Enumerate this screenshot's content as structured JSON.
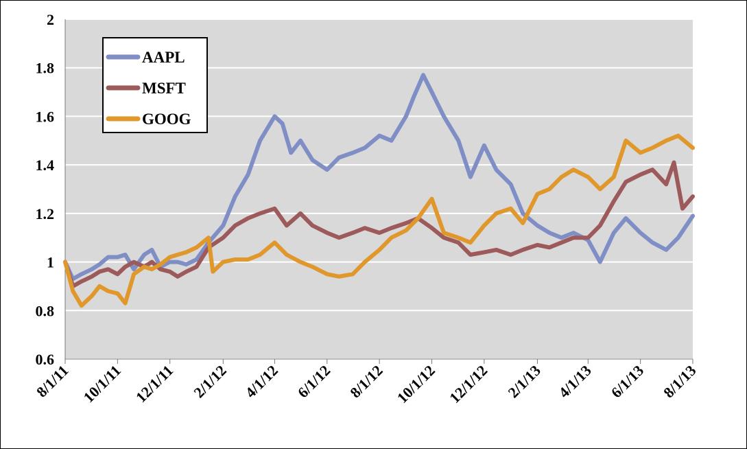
{
  "chart_data": {
    "type": "line",
    "title": "",
    "xlabel": "",
    "ylabel": "",
    "ylim": [
      0.6,
      2
    ],
    "y_ticks": [
      "0.6",
      "0.8",
      "1",
      "1.2",
      "1.4",
      "1.6",
      "1.8",
      "2"
    ],
    "x_ticks": [
      "8/1/11",
      "10/1/11",
      "12/1/11",
      "2/1/12",
      "4/1/12",
      "6/1/12",
      "8/1/12",
      "10/1/12",
      "12/1/12",
      "2/1/13",
      "4/1/13",
      "6/1/13",
      "8/1/13"
    ],
    "xlim": [
      "8/1/11",
      "8/1/13"
    ],
    "grid": "horizontal",
    "legend_position": "top-left",
    "background": "#d9d9d9",
    "series": [
      {
        "name": "AAPL",
        "color": "#7f8fc6",
        "points": [
          [
            "8/1/11",
            1.0
          ],
          [
            "8/10/11",
            0.93
          ],
          [
            "8/20/11",
            0.95
          ],
          [
            "9/1/11",
            0.97
          ],
          [
            "9/10/11",
            0.99
          ],
          [
            "9/20/11",
            1.02
          ],
          [
            "10/1/11",
            1.02
          ],
          [
            "10/10/11",
            1.03
          ],
          [
            "10/20/11",
            0.97
          ],
          [
            "11/1/11",
            1.03
          ],
          [
            "11/10/11",
            1.05
          ],
          [
            "11/20/11",
            0.98
          ],
          [
            "12/1/11",
            1.0
          ],
          [
            "12/10/11",
            1.0
          ],
          [
            "12/20/11",
            0.99
          ],
          [
            "1/1/12",
            1.01
          ],
          [
            "1/15/12",
            1.08
          ],
          [
            "2/1/12",
            1.15
          ],
          [
            "2/15/12",
            1.27
          ],
          [
            "3/1/12",
            1.36
          ],
          [
            "3/15/12",
            1.5
          ],
          [
            "4/1/12",
            1.6
          ],
          [
            "4/10/12",
            1.57
          ],
          [
            "4/20/12",
            1.45
          ],
          [
            "5/1/12",
            1.5
          ],
          [
            "5/15/12",
            1.42
          ],
          [
            "6/1/12",
            1.38
          ],
          [
            "6/15/12",
            1.43
          ],
          [
            "7/1/12",
            1.45
          ],
          [
            "7/15/12",
            1.47
          ],
          [
            "8/1/12",
            1.52
          ],
          [
            "8/15/12",
            1.5
          ],
          [
            "9/1/12",
            1.6
          ],
          [
            "9/10/12",
            1.68
          ],
          [
            "9/21/12",
            1.77
          ],
          [
            "10/1/12",
            1.7
          ],
          [
            "10/15/12",
            1.6
          ],
          [
            "11/1/12",
            1.5
          ],
          [
            "11/15/12",
            1.35
          ],
          [
            "12/1/12",
            1.48
          ],
          [
            "12/15/12",
            1.38
          ],
          [
            "1/1/13",
            1.32
          ],
          [
            "1/15/13",
            1.2
          ],
          [
            "2/1/13",
            1.15
          ],
          [
            "2/15/13",
            1.12
          ],
          [
            "3/1/13",
            1.1
          ],
          [
            "3/15/13",
            1.12
          ],
          [
            "4/1/13",
            1.09
          ],
          [
            "4/15/13",
            1.0
          ],
          [
            "5/1/13",
            1.12
          ],
          [
            "5/15/13",
            1.18
          ],
          [
            "6/1/13",
            1.12
          ],
          [
            "6/15/13",
            1.08
          ],
          [
            "7/1/13",
            1.05
          ],
          [
            "7/15/13",
            1.1
          ],
          [
            "8/1/13",
            1.19
          ]
        ]
      },
      {
        "name": "MSFT",
        "color": "#9c5a5a",
        "points": [
          [
            "8/1/11",
            1.0
          ],
          [
            "8/10/11",
            0.9
          ],
          [
            "8/20/11",
            0.92
          ],
          [
            "9/1/11",
            0.94
          ],
          [
            "9/10/11",
            0.96
          ],
          [
            "9/20/11",
            0.97
          ],
          [
            "10/1/11",
            0.95
          ],
          [
            "10/10/11",
            0.98
          ],
          [
            "10/20/11",
            1.0
          ],
          [
            "11/1/11",
            0.98
          ],
          [
            "11/10/11",
            1.0
          ],
          [
            "11/20/11",
            0.97
          ],
          [
            "12/1/11",
            0.96
          ],
          [
            "12/10/11",
            0.94
          ],
          [
            "12/20/11",
            0.96
          ],
          [
            "1/1/12",
            0.98
          ],
          [
            "1/15/12",
            1.06
          ],
          [
            "2/1/12",
            1.1
          ],
          [
            "2/15/12",
            1.15
          ],
          [
            "3/1/12",
            1.18
          ],
          [
            "3/15/12",
            1.2
          ],
          [
            "4/1/12",
            1.22
          ],
          [
            "4/15/12",
            1.15
          ],
          [
            "5/1/12",
            1.2
          ],
          [
            "5/15/12",
            1.15
          ],
          [
            "6/1/12",
            1.12
          ],
          [
            "6/15/12",
            1.1
          ],
          [
            "7/1/12",
            1.12
          ],
          [
            "7/15/12",
            1.14
          ],
          [
            "8/1/12",
            1.12
          ],
          [
            "8/15/12",
            1.14
          ],
          [
            "9/1/12",
            1.16
          ],
          [
            "9/15/12",
            1.18
          ],
          [
            "10/1/12",
            1.14
          ],
          [
            "10/15/12",
            1.1
          ],
          [
            "11/1/12",
            1.08
          ],
          [
            "11/15/12",
            1.03
          ],
          [
            "12/1/12",
            1.04
          ],
          [
            "12/15/12",
            1.05
          ],
          [
            "1/1/13",
            1.03
          ],
          [
            "1/15/13",
            1.05
          ],
          [
            "2/1/13",
            1.07
          ],
          [
            "2/15/13",
            1.06
          ],
          [
            "3/1/13",
            1.08
          ],
          [
            "3/15/13",
            1.1
          ],
          [
            "4/1/13",
            1.1
          ],
          [
            "4/15/13",
            1.15
          ],
          [
            "5/1/13",
            1.25
          ],
          [
            "5/15/13",
            1.33
          ],
          [
            "6/1/13",
            1.36
          ],
          [
            "6/15/13",
            1.38
          ],
          [
            "7/1/13",
            1.32
          ],
          [
            "7/10/13",
            1.41
          ],
          [
            "7/20/13",
            1.22
          ],
          [
            "8/1/13",
            1.27
          ]
        ]
      },
      {
        "name": "GOOG",
        "color": "#e0982c",
        "points": [
          [
            "8/1/11",
            1.0
          ],
          [
            "8/10/11",
            0.88
          ],
          [
            "8/20/11",
            0.82
          ],
          [
            "9/1/11",
            0.86
          ],
          [
            "9/10/11",
            0.9
          ],
          [
            "9/20/11",
            0.88
          ],
          [
            "10/1/11",
            0.87
          ],
          [
            "10/10/11",
            0.83
          ],
          [
            "10/20/11",
            0.95
          ],
          [
            "11/1/11",
            0.98
          ],
          [
            "11/10/11",
            0.97
          ],
          [
            "11/20/11",
            0.99
          ],
          [
            "12/1/11",
            1.02
          ],
          [
            "12/10/11",
            1.03
          ],
          [
            "12/20/11",
            1.04
          ],
          [
            "1/1/12",
            1.06
          ],
          [
            "1/15/12",
            1.1
          ],
          [
            "1/20/12",
            0.96
          ],
          [
            "2/1/12",
            1.0
          ],
          [
            "2/15/12",
            1.01
          ],
          [
            "3/1/12",
            1.01
          ],
          [
            "3/15/12",
            1.03
          ],
          [
            "4/1/12",
            1.08
          ],
          [
            "4/15/12",
            1.03
          ],
          [
            "5/1/12",
            1.0
          ],
          [
            "5/15/12",
            0.98
          ],
          [
            "6/1/12",
            0.95
          ],
          [
            "6/15/12",
            0.94
          ],
          [
            "7/1/12",
            0.95
          ],
          [
            "7/15/12",
            1.0
          ],
          [
            "8/1/12",
            1.05
          ],
          [
            "8/15/12",
            1.1
          ],
          [
            "9/1/12",
            1.13
          ],
          [
            "9/15/12",
            1.18
          ],
          [
            "10/1/12",
            1.26
          ],
          [
            "10/15/12",
            1.12
          ],
          [
            "11/1/12",
            1.1
          ],
          [
            "11/15/12",
            1.08
          ],
          [
            "12/1/12",
            1.15
          ],
          [
            "12/15/12",
            1.2
          ],
          [
            "1/1/13",
            1.22
          ],
          [
            "1/15/13",
            1.16
          ],
          [
            "2/1/13",
            1.28
          ],
          [
            "2/15/13",
            1.3
          ],
          [
            "3/1/13",
            1.35
          ],
          [
            "3/15/13",
            1.38
          ],
          [
            "4/1/13",
            1.35
          ],
          [
            "4/15/13",
            1.3
          ],
          [
            "5/1/13",
            1.35
          ],
          [
            "5/15/13",
            1.5
          ],
          [
            "6/1/13",
            1.45
          ],
          [
            "6/15/13",
            1.47
          ],
          [
            "7/1/13",
            1.5
          ],
          [
            "7/15/13",
            1.52
          ],
          [
            "8/1/13",
            1.47
          ]
        ]
      }
    ]
  }
}
